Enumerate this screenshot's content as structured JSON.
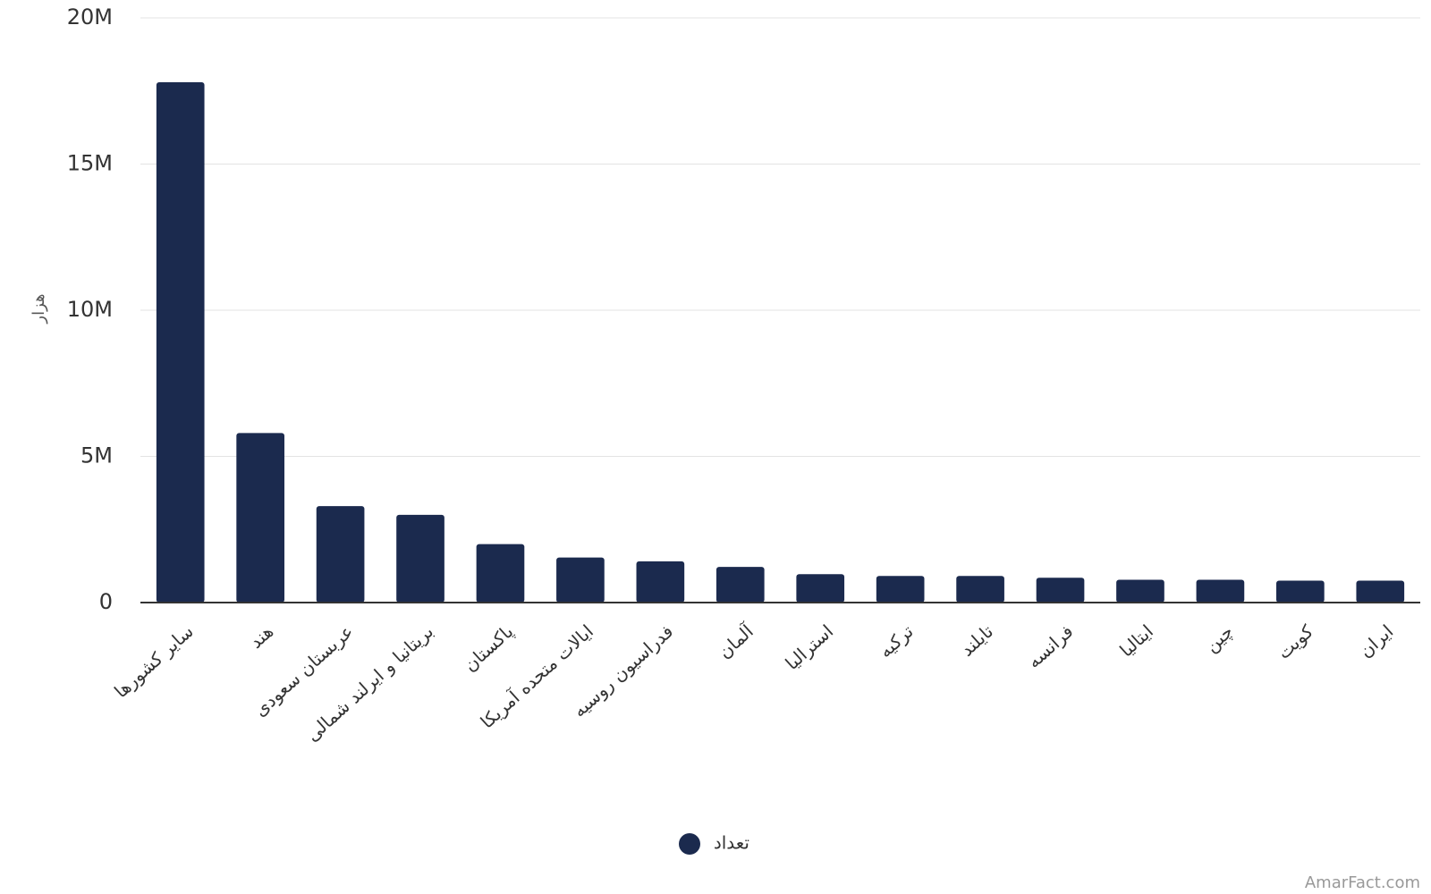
{
  "chart_data": {
    "type": "bar",
    "y_label": "هزار",
    "categories": [
      "سایر کشورها",
      "هند",
      "عربستان سعودی",
      "بریتانیا و ایرلند شمالی",
      "پاکستان",
      "ایالات متحده آمریکا",
      "فدراسیون روسیه",
      "آلمان",
      "استرالیا",
      "ترکیه",
      "تایلند",
      "فرانسه",
      "ایتالیا",
      "چین",
      "کویت",
      "ایران"
    ],
    "series": [
      {
        "name": "تعداد",
        "color": "#1b2a4e",
        "values": [
          17800000,
          5800000,
          3300000,
          3000000,
          2000000,
          1540000,
          1410000,
          1220000,
          970000,
          910000,
          910000,
          850000,
          780000,
          780000,
          750000,
          750000
        ]
      }
    ],
    "ylim": [
      0,
      20000000
    ],
    "yticks": [
      0,
      {
        "value": 5000000,
        "label": "5M"
      },
      {
        "value": 10000000,
        "label": "10M"
      },
      {
        "value": 15000000,
        "label": "15M"
      },
      {
        "value": 20000000,
        "label": "20M"
      }
    ],
    "grid": true,
    "legend": "bottom",
    "watermark": "AmarFact.com"
  }
}
